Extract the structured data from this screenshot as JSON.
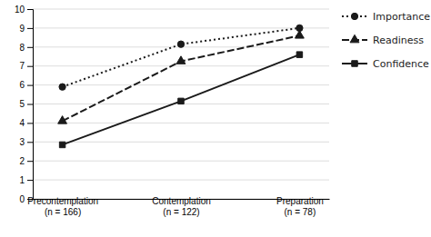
{
  "chart_data": {
    "type": "line",
    "categories": [
      "Precontemplation\n(n = 166)",
      "Contemplation\n(n = 122)",
      "Preparation\n(n = 78)"
    ],
    "series": [
      {
        "name": "Importance",
        "color": "#1a1a1a",
        "marker": "circle",
        "line_style": "dotted",
        "values": [
          5.9,
          8.15,
          9.0
        ]
      },
      {
        "name": "Readiness",
        "color": "#1a1a1a",
        "marker": "triangle",
        "line_style": "dashed",
        "values": [
          4.1,
          7.25,
          8.6
        ]
      },
      {
        "name": "Confidence",
        "color": "#1a1a1a",
        "marker": "square",
        "line_style": "solid",
        "values": [
          2.85,
          5.15,
          7.6
        ]
      }
    ],
    "ylim": [
      0,
      10
    ],
    "yticks": [
      0,
      1,
      2,
      3,
      4,
      5,
      6,
      7,
      8,
      9,
      10
    ],
    "grid": true,
    "legend": "right"
  }
}
